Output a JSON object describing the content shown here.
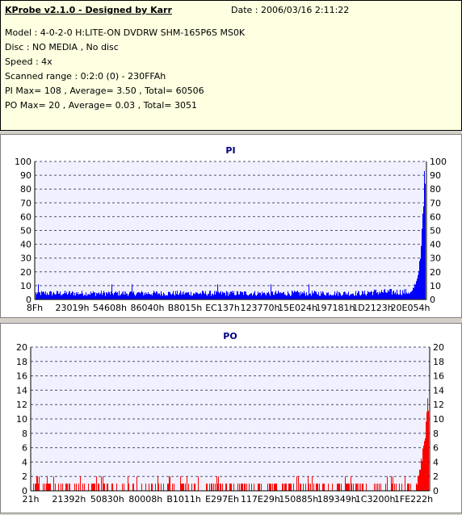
{
  "info": {
    "title": "KProbe v2.1.0 - Designed by Karr",
    "date": "Date : 2006/03/16 2:11:22",
    "lines": [
      "Model : 4-0-2-0 H:LITE-ON DVDRW SHM-165P6S MS0K",
      "Disc : NO MEDIA , No disc",
      "Speed : 4x",
      "Scanned range : 0:2:0 (0) - 230FFAh",
      "PI Max= 108 , Average= 3.50 , Total= 60506",
      "PO Max= 20 , Average= 0.03 , Total= 3051"
    ]
  },
  "chart_data": [
    {
      "type": "bar",
      "title": "PI",
      "color": "#0000ff",
      "ylim": [
        0,
        100
      ],
      "yticks": [
        0,
        10,
        20,
        30,
        40,
        50,
        60,
        70,
        80,
        90,
        100
      ],
      "xticks": [
        "8Fh",
        "23019h",
        "54608h",
        "86040h",
        "B8015h",
        "EC137h",
        "123770h",
        "15E024h",
        "197181h",
        "1D2123h",
        "20E054h"
      ],
      "grid": true,
      "summary": {
        "max": 108,
        "average": 3.5,
        "total": 60506
      },
      "series": [
        {
          "name": "PI",
          "baseline": 5,
          "tail": [
            5,
            6,
            8,
            10,
            14,
            20,
            30,
            45,
            62,
            85
          ]
        }
      ]
    },
    {
      "type": "bar",
      "title": "PO",
      "color": "#ff0000",
      "ylim": [
        0,
        20
      ],
      "yticks": [
        0,
        2,
        4,
        6,
        8,
        10,
        12,
        14,
        16,
        18,
        20
      ],
      "xticks": [
        "21h",
        "21392h",
        "50830h",
        "80008h",
        "B1011h",
        "E297Eh",
        "117E29h",
        "150885h",
        "189349h",
        "1C3200h",
        "1FE222h"
      ],
      "grid": true,
      "summary": {
        "max": 20,
        "average": 0.03,
        "total": 3051
      },
      "series": [
        {
          "name": "PO",
          "baseline": 1,
          "tail": [
            1,
            2,
            3,
            4,
            6,
            8,
            10,
            13
          ]
        }
      ]
    }
  ]
}
